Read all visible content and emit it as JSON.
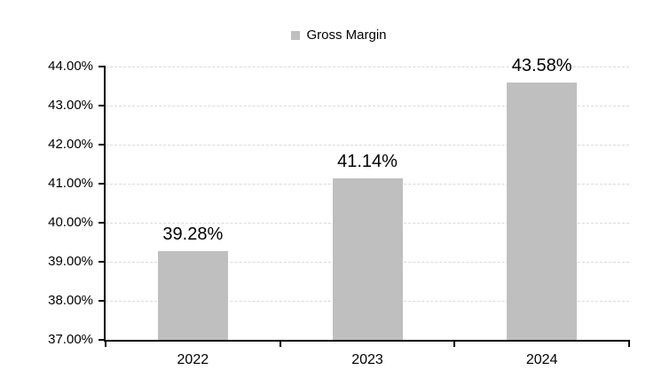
{
  "legend": {
    "label": "Gross Margin"
  },
  "chart_data": {
    "type": "bar",
    "title": "",
    "xlabel": "",
    "ylabel": "",
    "categories": [
      "2022",
      "2023",
      "2024"
    ],
    "series": [
      {
        "name": "Gross Margin",
        "values": [
          39.28,
          41.14,
          43.58
        ]
      }
    ],
    "value_labels": [
      "39.28%",
      "41.14%",
      "43.58%"
    ],
    "ylim": [
      37,
      44
    ],
    "ytick_step": 1,
    "ytick_labels": [
      "37.00%",
      "38.00%",
      "39.00%",
      "40.00%",
      "41.00%",
      "42.00%",
      "43.00%",
      "44.00%"
    ],
    "grid": "horizontal-dashed",
    "legend_position": "top-center",
    "colors": {
      "bar": "#BFBFBF",
      "gridline": "#D9D9D9",
      "axis": "#000000",
      "text": "#000000"
    }
  }
}
